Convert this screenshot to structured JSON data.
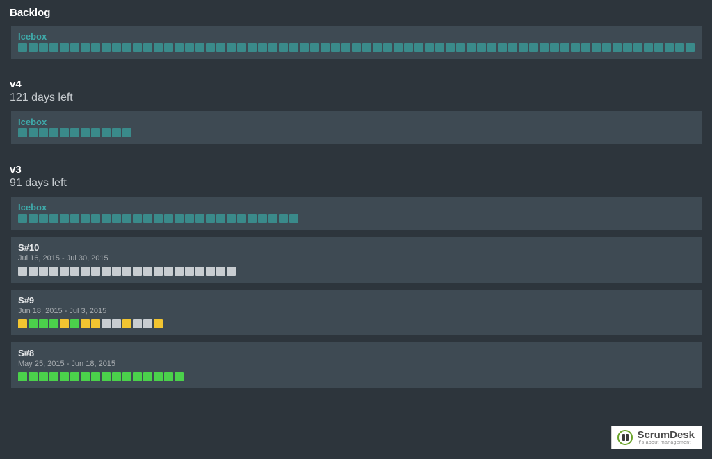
{
  "colors": {
    "teal": "#3a8a8a",
    "grey": "#c8cdd1",
    "green": "#4bd14b",
    "yellow": "#f2c531"
  },
  "sections": [
    {
      "title": "Backlog",
      "sub": "",
      "lanes": [
        {
          "title": "Icebox",
          "titleColor": "teal",
          "dates": "",
          "cards": 68,
          "pattern": [
            "teal"
          ]
        }
      ]
    },
    {
      "title": "v4",
      "sub": "121 days left",
      "lanes": [
        {
          "title": "Icebox",
          "titleColor": "teal",
          "dates": "",
          "cards": 11,
          "pattern": [
            "teal"
          ]
        }
      ]
    },
    {
      "title": "v3",
      "sub": "91 days left",
      "lanes": [
        {
          "title": "Icebox",
          "titleColor": "teal",
          "dates": "",
          "cards": 27,
          "pattern": [
            "teal"
          ]
        },
        {
          "title": "S#10",
          "titleColor": "white",
          "dates": "Jul 16, 2015 - Jul 30, 2015",
          "cards": 21,
          "pattern": [
            "grey"
          ]
        },
        {
          "title": "S#9",
          "titleColor": "white",
          "dates": "Jun 18, 2015 - Jul 3, 2015",
          "cards": 14,
          "pattern": [
            "yellow",
            "green",
            "green",
            "green",
            "yellow",
            "green",
            "yellow",
            "yellow",
            "grey",
            "grey",
            "yellow",
            "grey",
            "grey",
            "yellow"
          ]
        },
        {
          "title": "S#8",
          "titleColor": "white",
          "dates": "May 25, 2015 - Jun 18, 2015",
          "cards": 16,
          "pattern": [
            "green"
          ]
        }
      ]
    }
  ],
  "logo": {
    "brand": "ScrumDesk",
    "tagline": "It's about management"
  }
}
